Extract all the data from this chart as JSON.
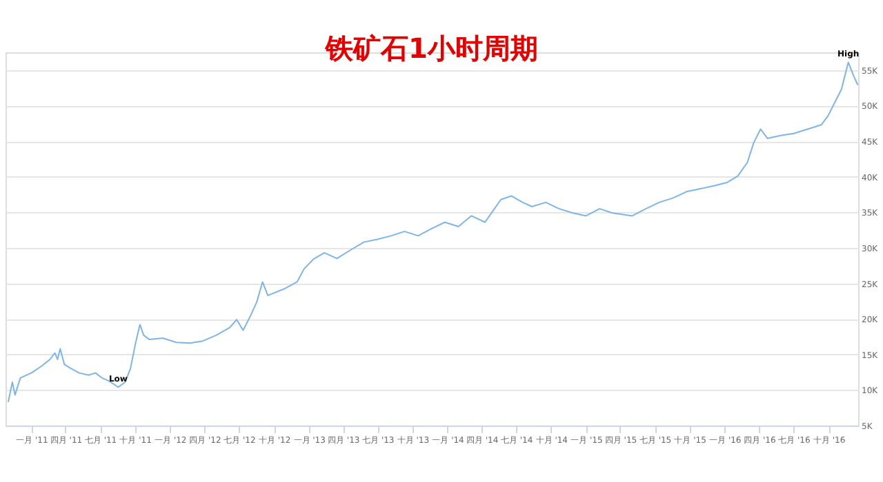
{
  "chart_data": {
    "type": "line",
    "title": "铁矿石1小时周期",
    "x": [
      "2010-11-01",
      "2010-11-12",
      "2010-11-19",
      "2010-12-03",
      "2011-01-01",
      "2011-01-29",
      "2011-02-19",
      "2011-03-04",
      "2011-03-11",
      "2011-03-18",
      "2011-03-29",
      "2011-04-16",
      "2011-05-07",
      "2011-06-01",
      "2011-06-19",
      "2011-07-06",
      "2011-07-23",
      "2011-08-18",
      "2011-09-05",
      "2011-09-19",
      "2011-10-03",
      "2011-10-14",
      "2011-10-24",
      "2011-11-08",
      "2011-12-13",
      "2012-01-18",
      "2012-02-23",
      "2012-03-28",
      "2012-05-02",
      "2012-06-07",
      "2012-06-25",
      "2012-07-12",
      "2012-07-30",
      "2012-08-17",
      "2012-09-01",
      "2012-09-15",
      "2012-10-27",
      "2012-12-01",
      "2012-12-19",
      "2013-01-13",
      "2013-02-11",
      "2013-03-16",
      "2013-04-21",
      "2013-05-26",
      "2013-07-01",
      "2013-08-06",
      "2013-09-10",
      "2013-10-16",
      "2013-11-20",
      "2013-12-25",
      "2014-01-30",
      "2014-03-05",
      "2014-04-10",
      "2014-04-27",
      "2014-05-22",
      "2014-06-19",
      "2014-07-18",
      "2014-08-12",
      "2014-09-17",
      "2014-10-22",
      "2014-11-27",
      "2015-01-01",
      "2015-02-06",
      "2015-03-11",
      "2015-05-03",
      "2015-06-08",
      "2015-07-13",
      "2015-08-18",
      "2015-09-23",
      "2015-10-28",
      "2015-12-03",
      "2016-01-08",
      "2016-02-05",
      "2016-03-01",
      "2016-03-18",
      "2016-04-05",
      "2016-04-23",
      "2016-05-28",
      "2016-07-02",
      "2016-08-07",
      "2016-09-12",
      "2016-09-30",
      "2016-10-17",
      "2016-11-04",
      "2016-11-22",
      "2016-12-06",
      "2016-12-17"
    ],
    "series": [
      {
        "color": "#7cb5ec",
        "values": [
          8300,
          11100,
          9300,
          11700,
          12400,
          13400,
          14300,
          15200,
          14300,
          15800,
          13600,
          13000,
          12400,
          12100,
          12400,
          11700,
          11300,
          10400,
          11100,
          13000,
          16700,
          19200,
          17700,
          17100,
          17300,
          16700,
          16600,
          16900,
          17700,
          18800,
          19900,
          18400,
          20300,
          22400,
          25200,
          23300,
          24200,
          25200,
          27000,
          28400,
          29300,
          28500,
          29700,
          30800,
          31200,
          31700,
          32300,
          31700,
          32700,
          33600,
          33000,
          34500,
          33600,
          34900,
          36800,
          37300,
          36400,
          35800,
          36400,
          35500,
          34900,
          34500,
          35500,
          34900,
          34500,
          35500,
          36400,
          37000,
          37900,
          38300,
          38700,
          39200,
          40100,
          42000,
          44800,
          46700,
          45400,
          45800,
          46100,
          46700,
          47300,
          48600,
          50400,
          52300,
          56100,
          54200,
          52900
        ]
      }
    ],
    "xlim": [
      "2010-10-25",
      "2016-12-18"
    ],
    "xticks": [
      {
        "value": "2011-01-01",
        "label": "一月 '11"
      },
      {
        "value": "2011-04-01",
        "label": "四月 '11"
      },
      {
        "value": "2011-07-01",
        "label": "七月 '11"
      },
      {
        "value": "2011-10-01",
        "label": "十月 '11"
      },
      {
        "value": "2012-01-01",
        "label": "一月 '12"
      },
      {
        "value": "2012-04-01",
        "label": "四月 '12"
      },
      {
        "value": "2012-07-01",
        "label": "七月 '12"
      },
      {
        "value": "2012-10-01",
        "label": "十月 '12"
      },
      {
        "value": "2013-01-01",
        "label": "一月 '13"
      },
      {
        "value": "2013-04-01",
        "label": "四月 '13"
      },
      {
        "value": "2013-07-01",
        "label": "七月 '13"
      },
      {
        "value": "2013-10-01",
        "label": "十月 '13"
      },
      {
        "value": "2014-01-01",
        "label": "一月 '14"
      },
      {
        "value": "2014-04-01",
        "label": "四月 '14"
      },
      {
        "value": "2014-07-01",
        "label": "七月 '14"
      },
      {
        "value": "2014-10-01",
        "label": "十月 '14"
      },
      {
        "value": "2015-01-01",
        "label": "一月 '15"
      },
      {
        "value": "2015-04-01",
        "label": "四月 '15"
      },
      {
        "value": "2015-07-01",
        "label": "七月 '15"
      },
      {
        "value": "2015-10-01",
        "label": "十月 '15"
      },
      {
        "value": "2016-01-01",
        "label": "一月 '16"
      },
      {
        "value": "2016-04-01",
        "label": "四月 '16"
      },
      {
        "value": "2016-07-01",
        "label": "七月 '16"
      },
      {
        "value": "2016-10-01",
        "label": "十月 '16"
      }
    ],
    "ylim": [
      5000,
      57500
    ],
    "yticks": [
      {
        "value": 5000,
        "label": "5K"
      },
      {
        "value": 10000,
        "label": "10K"
      },
      {
        "value": 15000,
        "label": "15K"
      },
      {
        "value": 20000,
        "label": "20K"
      },
      {
        "value": 25000,
        "label": "25K"
      },
      {
        "value": 30000,
        "label": "30K"
      },
      {
        "value": 35000,
        "label": "35K"
      },
      {
        "value": 40000,
        "label": "40K"
      },
      {
        "value": 45000,
        "label": "45K"
      },
      {
        "value": 50000,
        "label": "50K"
      },
      {
        "value": 55000,
        "label": "55K"
      }
    ],
    "annotations": [
      {
        "text": "Low",
        "x": "2011-08-18",
        "y": 10400
      },
      {
        "text": "High",
        "x": "2016-11-22",
        "y": 56100
      }
    ],
    "grid": "y",
    "marker": "none",
    "line_style": "solid"
  }
}
